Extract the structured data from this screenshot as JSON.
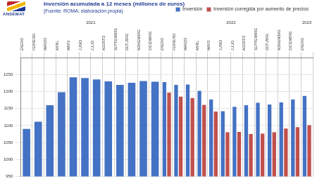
{
  "chart_data": {
    "type": "bar",
    "title": "Inversión acumulada a 12 meses (millones de euros)",
    "subtitle": "(Fuente: ROMA; elaboración propia)",
    "annotation": "ANSEMAT",
    "categories": [
      "ENERO",
      "FEBRERO",
      "MARZO",
      "ABRIL",
      "MAYO",
      "JUNIO",
      "JULIO",
      "AGOSTO",
      "SEPTIEMBRE",
      "OCTUBRE",
      "NOVIEMBRE",
      "DICIEMBRE",
      "ENERO",
      "FEBRERO",
      "MARZO",
      "ABRIL",
      "MAYO",
      "JUNIO",
      "JULIO",
      "AGOSTO",
      "SEPTIEMBRE",
      "OCTUBRE",
      "NOVIEMBRE",
      "DICIEMBRE",
      "ENERO"
    ],
    "groups": [
      {
        "label": "2021",
        "count": 12
      },
      {
        "label": "2022",
        "count": 12
      },
      {
        "label": "2023",
        "count": 1
      }
    ],
    "series": [
      {
        "name": "Inversión",
        "color": "#4472c4",
        "values": [
          1090,
          1111,
          1160,
          1198,
          1242,
          1240,
          1236,
          1230,
          1220,
          1226,
          1231,
          1229,
          1228,
          1220,
          1221,
          1202,
          1177,
          1142,
          1155,
          1160,
          1167,
          1162,
          1168,
          1177,
          1187
        ]
      },
      {
        "name": "Inversión corregida por aumento de precios",
        "color": "#c0504d",
        "values": [
          null,
          null,
          null,
          null,
          null,
          null,
          null,
          null,
          null,
          null,
          null,
          null,
          1197,
          1185,
          1181,
          1161,
          1141,
          1080,
          1081,
          1075,
          1076,
          1080,
          1091,
          1095,
          1101
        ]
      }
    ],
    "ylim": [
      950,
      1300
    ],
    "yticks": [
      950,
      1000,
      1050,
      1100,
      1150,
      1200,
      1250
    ],
    "grid": true,
    "legend": "top-right"
  }
}
